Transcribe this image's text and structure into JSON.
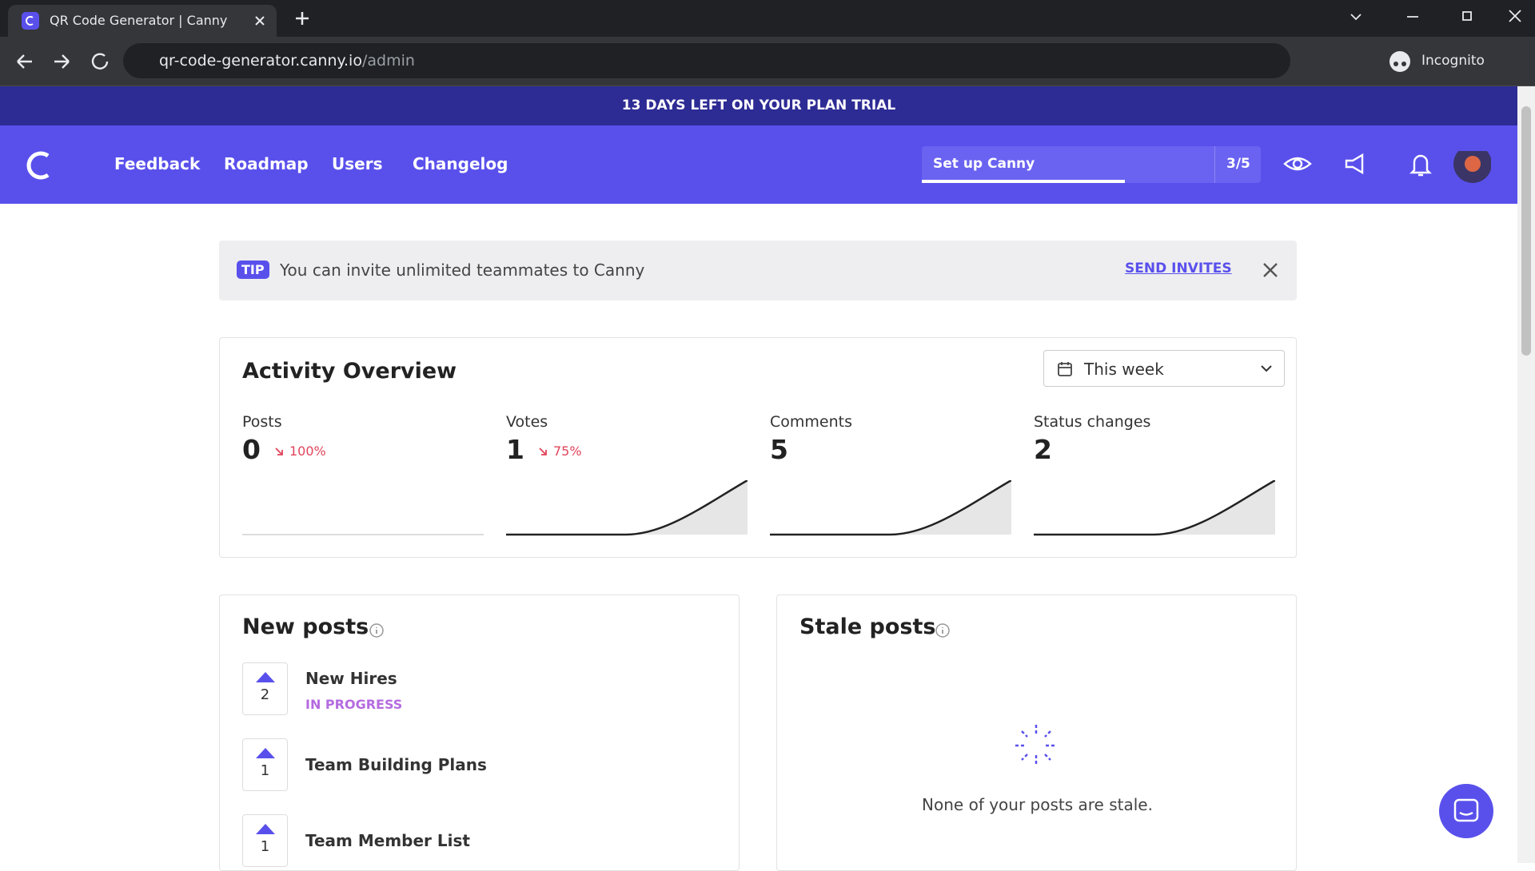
{
  "browser": {
    "tab_title": "QR Code Generator | Canny",
    "url_host": "qr-code-generator.canny.io",
    "url_path": "/admin",
    "profile": "Incognito"
  },
  "banner": {
    "text": "13 DAYS LEFT ON YOUR PLAN TRIAL"
  },
  "nav": {
    "items": [
      "Feedback",
      "Roadmap",
      "Users",
      "Changelog"
    ],
    "setup_label": "Set up Canny",
    "setup_progress": "3/5"
  },
  "tip": {
    "badge": "TIP",
    "text": "You can invite unlimited teammates to Canny",
    "action": "SEND INVITES"
  },
  "activity": {
    "title": "Activity Overview",
    "range": "This week",
    "metrics": [
      {
        "label": "Posts",
        "value": "0",
        "change": "100%"
      },
      {
        "label": "Votes",
        "value": "1",
        "change": "75%"
      },
      {
        "label": "Comments",
        "value": "5"
      },
      {
        "label": "Status changes",
        "value": "2"
      }
    ]
  },
  "new_posts": {
    "title": "New posts",
    "posts": [
      {
        "votes": "2",
        "title": "New Hires",
        "status": "IN PROGRESS"
      },
      {
        "votes": "1",
        "title": "Team Building Plans"
      },
      {
        "votes": "1",
        "title": "Team Member List"
      }
    ]
  },
  "stale_posts": {
    "title": "Stale posts",
    "empty": "None of your posts are stale."
  }
}
